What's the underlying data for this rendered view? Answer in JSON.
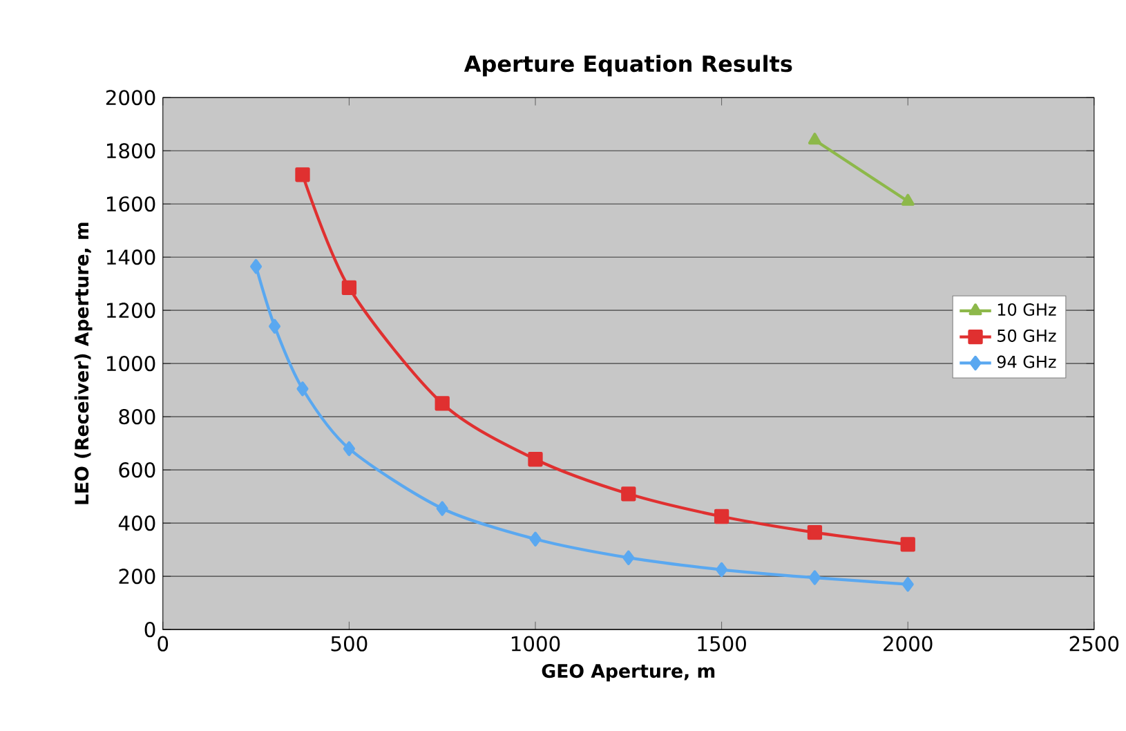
{
  "chart_data": {
    "type": "line",
    "title": "Aperture Equation Results",
    "xlabel": "GEO Aperture, m",
    "ylabel": "LEO (Receiver) Aperture, m",
    "xlim": [
      0,
      2500
    ],
    "xticks": [
      0,
      500,
      1000,
      1500,
      2000,
      2500
    ],
    "ylim": [
      0,
      2000
    ],
    "yticks": [
      0,
      200,
      400,
      600,
      800,
      1000,
      1200,
      1400,
      1600,
      1800,
      2000
    ],
    "grid": "y",
    "legend": "right",
    "series": [
      {
        "name": "10 GHz",
        "color": "#8db84a",
        "marker": "triangle",
        "x": [
          1750,
          2000
        ],
        "values": [
          1840,
          1610
        ]
      },
      {
        "name": "50 GHz",
        "color": "#e03030",
        "marker": "square",
        "x": [
          375,
          500,
          750,
          1000,
          1250,
          1500,
          1750,
          2000
        ],
        "values": [
          1710,
          1285,
          850,
          640,
          510,
          425,
          365,
          320
        ]
      },
      {
        "name": "94 GHz",
        "color": "#5aa8f0",
        "marker": "diamond",
        "x": [
          250,
          300,
          375,
          500,
          750,
          1000,
          1250,
          1500,
          1750,
          2000
        ],
        "values": [
          1365,
          1140,
          905,
          680,
          455,
          340,
          270,
          225,
          195,
          170
        ]
      }
    ]
  }
}
